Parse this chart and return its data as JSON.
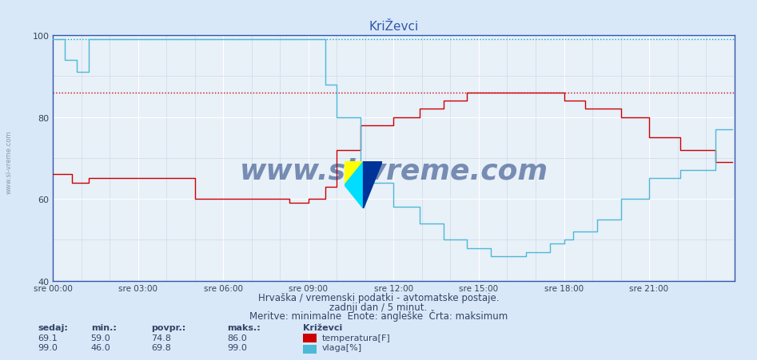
{
  "title": "KriŽevci",
  "background_color": "#d8e8f8",
  "plot_bg_color": "#e8f0f8",
  "grid_color_major": "#ffffff",
  "grid_color_minor": "#d0d8e8",
  "x_labels": [
    "sre 00:00",
    "sre 03:00",
    "sre 06:00",
    "sre 09:00",
    "sre 12:00",
    "sre 15:00",
    "sre 18:00",
    "sre 21:00"
  ],
  "x_ticks": [
    0,
    36,
    72,
    108,
    144,
    180,
    216,
    252
  ],
  "x_max": 288,
  "y_min": 40,
  "y_max": 100,
  "y_ticks": [
    40,
    60,
    80,
    100
  ],
  "temp_color": "#cc0000",
  "humidity_color": "#4db8d8",
  "temp_max_line": 86.0,
  "humidity_max_line": 99.0,
  "temp_max_color": "#cc0000",
  "humidity_max_color": "#00aacc",
  "subtitle1": "Hrvaška / vremenski podatki - avtomatske postaje.",
  "subtitle2": "zadnji dan / 5 minut.",
  "subtitle3": "Meritve: minimalne  Enote: angleške  Črta: maksimum",
  "legend_location": "Križevci",
  "stat_headers": [
    "sedaj:",
    "min.:",
    "povpr.:",
    "maks.:"
  ],
  "temp_stats": [
    69.1,
    59.0,
    74.8,
    86.0
  ],
  "humidity_stats": [
    99.0,
    46.0,
    69.8,
    99.0
  ],
  "temp_label": "temperatura[F]",
  "humidity_label": "vlaga[%]",
  "watermark": "www.si-vreme.com",
  "left_label": "www.si-vreme.com"
}
